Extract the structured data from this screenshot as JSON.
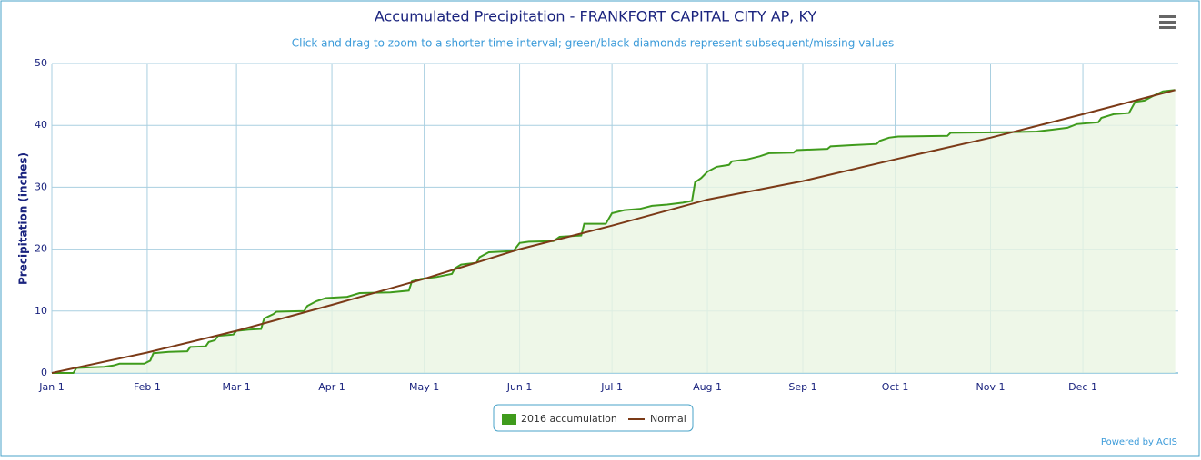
{
  "chart_data": {
    "type": "line",
    "title": "Accumulated Precipitation - FRANKFORT CAPITAL CITY AP, KY",
    "subtitle": "Click and drag to zoom to a shorter time interval; green/black diamonds represent subsequent/missing values",
    "y_label": "Precipitation (inches)",
    "credit": "Powered by ACIS",
    "xlim": [
      0,
      366
    ],
    "xticks": [
      {
        "value": 0,
        "label": "Jan 1"
      },
      {
        "value": 31,
        "label": "Feb 1"
      },
      {
        "value": 60,
        "label": "Mar 1"
      },
      {
        "value": 91,
        "label": "Apr 1"
      },
      {
        "value": 121,
        "label": "May 1"
      },
      {
        "value": 152,
        "label": "Jun 1"
      },
      {
        "value": 182,
        "label": "Jul 1"
      },
      {
        "value": 213,
        "label": "Aug 1"
      },
      {
        "value": 244,
        "label": "Sep 1"
      },
      {
        "value": 274,
        "label": "Oct 1"
      },
      {
        "value": 305,
        "label": "Nov 1"
      },
      {
        "value": 335,
        "label": "Dec 1"
      }
    ],
    "ylim": [
      0,
      50
    ],
    "yticks": [
      0,
      10,
      20,
      30,
      40,
      50
    ],
    "grid": true,
    "legend": "bottom",
    "series": [
      {
        "name": "2016 accumulation",
        "color": "#3f9b1c",
        "fill": "#eaf5e2",
        "x": [
          0,
          7,
          8,
          12,
          17,
          20,
          22,
          30,
          32,
          33,
          38,
          44,
          45,
          50,
          51,
          53,
          54,
          59,
          60,
          64,
          68,
          69,
          72,
          73,
          82,
          83,
          86,
          89,
          96,
          100,
          110,
          116,
          117,
          120,
          125,
          130,
          131,
          133,
          138,
          139,
          142,
          150,
          152,
          155,
          163,
          165,
          172,
          173,
          180,
          182,
          186,
          191,
          195,
          200,
          205,
          208,
          209,
          211,
          213,
          216,
          220,
          221,
          226,
          230,
          233,
          241,
          242,
          252,
          253,
          260,
          268,
          269,
          272,
          275,
          291,
          292,
          310,
          320,
          325,
          330,
          333,
          340,
          341,
          345,
          350,
          352,
          355,
          358,
          361,
          365
        ],
        "values": [
          0,
          0,
          0.8,
          0.9,
          1.0,
          1.2,
          1.5,
          1.5,
          2,
          3.2,
          3.4,
          3.5,
          4.2,
          4.3,
          5.0,
          5.3,
          6.0,
          6.2,
          6.8,
          7.0,
          7.1,
          8.8,
          9.5,
          9.9,
          10.0,
          10.8,
          11.6,
          12.1,
          12.3,
          12.9,
          13.0,
          13.3,
          14.8,
          15.2,
          15.5,
          16.0,
          16.9,
          17.5,
          17.8,
          18.7,
          19.5,
          19.7,
          21.0,
          21.2,
          21.3,
          22.0,
          22.2,
          24.1,
          24.1,
          25.8,
          26.3,
          26.5,
          27.0,
          27.2,
          27.5,
          27.8,
          30.8,
          31.5,
          32.5,
          33.3,
          33.6,
          34.2,
          34.5,
          35.0,
          35.5,
          35.6,
          36.0,
          36.2,
          36.6,
          36.8,
          37.0,
          37.5,
          38.0,
          38.2,
          38.3,
          38.8,
          38.9,
          39.0,
          39.3,
          39.6,
          40.2,
          40.5,
          41.2,
          41.8,
          42.0,
          43.8,
          44.0,
          44.8,
          45.5,
          45.7
        ]
      },
      {
        "name": "Normal",
        "color": "#7b3a17",
        "x": [
          0,
          31,
          60,
          91,
          121,
          152,
          182,
          213,
          244,
          274,
          305,
          335,
          365
        ],
        "values": [
          0,
          3.3,
          6.8,
          11.0,
          15.2,
          20.0,
          23.8,
          28.0,
          31.0,
          34.5,
          38.0,
          41.8,
          45.7
        ]
      }
    ]
  }
}
